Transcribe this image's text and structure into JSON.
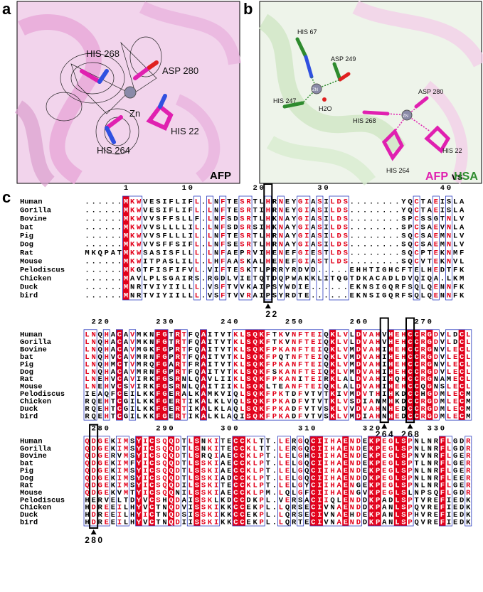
{
  "figure": {
    "panel_labels": [
      "a",
      "b",
      "c"
    ],
    "panel_a": {
      "labels": [
        "HIS 268",
        "ASP 280",
        "Zn",
        "HIS 264",
        "HIS 22",
        "AFP"
      ]
    },
    "panel_b": {
      "labels": [
        "HIS 67",
        "ASP 249",
        "ZN",
        "HIS 247",
        "H2O",
        "HIS 268",
        "ASP 280",
        "ZN",
        "HIS 264",
        "HIS 22"
      ],
      "legend": [
        "AFP",
        "vs",
        "HSA"
      ]
    },
    "alignment": {
      "species": [
        "Human",
        "Gorilla",
        "Bovine",
        "bat",
        "Pig",
        "Dog",
        "Rat",
        "Mouse",
        "Pelodiscus",
        "Chicken",
        "Duck",
        "bird"
      ],
      "blocks": [
        {
          "ruler": "      1        10         20        30                 40",
          "rows": [
            "......MKWVESIFLIFL.LNFTESRTLHRNEYGIASILDS........YQCTAEISLA",
            "......MKWVESIFLIFL.LNFTESRTIHRNEYGIASILDS........YQCTAEISLA",
            "......MKWVVSFFSLLF.LNFSDSRTLHKNAYGIASILDS........SPCSSGTNLV",
            "......MKWVVSLLLLIL.LNFSDSRSIHKNAYGIASILDS........SPCSAEVNLA",
            "......MKWVVSFLLLIL.LNFTESRTLHRNAYGIASILDS........SQCSAEMNLV",
            "......MKWVVSFFSIFL.LNFSESRTLHRNAYGIASILDS........SQCSAEMNLV",
            "MKQPATMKWSASISFLLL.LNFAEPRVIHENEFGIESTLDS........SQCPTEKNMF",
            "......MKWITPASLILL.LHFAASKALHENEFGIASTLDS........SQCVTEKNVL",
            "......MKGTFISFIFVL.VIFTESKTLPRRYRDVD.....EHHTIGHCFTELHEDTFK",
            "......MAVLPLSGAIRS.RGDLVIETQTDQPWAKKLITQGTDKACADLDVQIQA.LKM",
            "......MNRTVIYIILLL.VSFTVVKAIPSYWDIE......EKNSIGQRFSQLQENNFK",
            "......MNRTVIYIILLL.VSFTVVRAIPSYRDTE......EKNSIGQRFSQLQENNFK"
          ],
          "markers": "                            22"
        },
        {
          "ruler": " 220       230       240       250       260       270",
          "rows": [
            "LNQHACAVMKNFGTRTFQAITVTKLSQKFTKVNFTEIQKLVLDVAHVHEHCCRGDVLDCL",
            "LNQHACAVMKNFGTRTFQAITVTKLSQKFTKVNFTEIQKLVLDVAHVHEHCCRGDVLDCL",
            "LNQHACAVMGKFGPRTFQAITVTKLSQKFPKANFTEIQKLVMDVAHIHEHCCRGNVLECL",
            "LNQHVCAVMRNFGPRTFQAITVTKLSQKFPQTNFTEIQKLVMDVAHIHEHCCRGDVLECL",
            "LNQHMCTVMRQFGARTFRAITVTKLSQKFPKANFTEIQKLVMDVAHIHEHCCRGNVLECL",
            "LNQHACAVMRNFGPRTFQAITVTKLSQKFSKANFTEIQKLVMDVAHIHEHCCRGDVLECL",
            "LNEHVCAVIRKFGSRNLQAVLIIKLSQKFPKANITEIRKLALDVAHIHQHCCRGNAMECL",
            "LNEHVCSVIRKFGSRNLQAITIIKLSQKLTEANFTEIQKLALDVAHIHEHCCQGNSLECL",
            "IEAQFCEILKKFGERALKAMKVIQLSQKFPKTDFVTVTKIVMDVTHIHKDCCHGDMLECM",
            "RQEHTCGILKKFGERTIKALKLVQLSQKFPKADFVTVTKLVSDIANMHKDCCRGDMLECM",
            "RQEHTCGILKKFGERTIKALKLAQLSQKFPKADFVTVSKLVVDVAHNHEDCCRGDMLECM",
            "RQEHTCGILKKFGERTIKALKLAQISQKFPKADFVTVSKLVMDIAHNHEDCCRGDMLECM"
          ],
          "markers": "                                             264 268"
        },
        {
          "ruler": " 280       290       300         310       320       330",
          "rows": [
            "QDGEKIMSYICSQQDTLSNKITECCKLTT.LERGQCIIHAENDEKPEGLSPNLNRFLGDR",
            "QDGEKIMSYICSQQDTLSNKITECCKLTT.LERGQCIIHAENDEKPEGLSPNLNRFLGDR",
            "QDGERVMSYICSQQDTLSRQIAECCKLPT.LELGHCIIHAENDEKPEGLSPNVNRFLGER",
            "QDGEKIMFYICSQQDTLSSKIAECCKLPT.LELGQCIIHAENDEKPEGLSPTLNRFLGER",
            "QDGEKIMSYICSQQDTLSSKIAECCKLPT.LELGQCIIHAENDEKPEGLSPNLNRFLGER",
            "QDGEKIMSYICSQQDTLSSKIADCCKLPT.LELGQCIIHAENDDKPEGLSPNLNRFLEER",
            "QDGEKIMSYICSQQDILSSKITECCKLPT.LELGYCIIHAENGEKPEGLSPNLNRFLGER",
            "QDGEKVMTYICSQQNILSSKIAECCKLPM.LQLGFCIIHAENGVKPEGLSLNPSQFLGDR",
            "HERVELTDYVCSHQDAISSKLKDCCDKPL.VERSACIIQLENDDKPADLSPTVREFIEDK",
            "HDREEILHYVCTNQDVISSKIKKCCEKPL.LQRSECIVNAENDDKPANLSPQVREFIEDK",
            "HDREEILHYICTNQDSISSKIKKCCEKPL.LQRSECIVNAEHDEKPANLSPHVREFIEDK",
            "HDREEILHYVCTNQDIISSKIKKCCEKPL.LQRTECIVNAENDDKPANLSPQVREFIEDK"
          ],
          "markers": "280"
        }
      ]
    }
  }
}
